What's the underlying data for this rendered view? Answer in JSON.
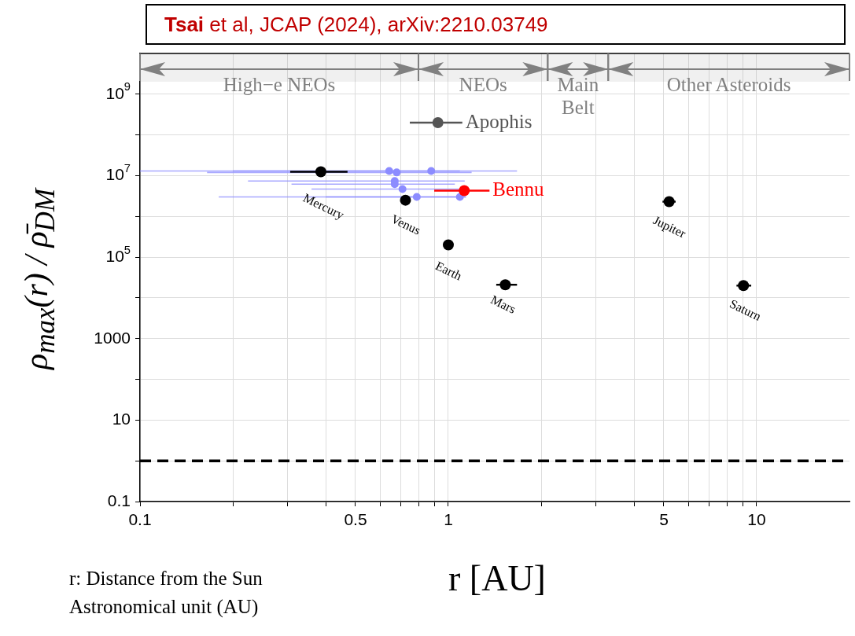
{
  "chart_data": {
    "type": "scatter",
    "title": "Tsai et al, JCAP (2024), arXiv:2210.03749",
    "xlabel": "r [AU]",
    "ylabel": "ρ$_{max}$(r) / ρ̄$_{DM}$",
    "log": "xy",
    "grid": true,
    "marker": "circle",
    "xlim": [
      0.1,
      20
    ],
    "ylim": [
      0.1,
      10000000000
    ],
    "xticks": [
      0.1,
      {
        "value": 0.2,
        "label": null
      },
      {
        "value": 0.3,
        "label": null
      },
      {
        "value": 0.4,
        "label": null
      },
      0.5,
      {
        "value": 0.6,
        "label": null
      },
      {
        "value": 0.7,
        "label": null
      },
      {
        "value": 0.8,
        "label": null
      },
      {
        "value": 0.9,
        "label": null
      },
      1,
      {
        "value": 2,
        "label": null
      },
      {
        "value": 3,
        "label": null
      },
      {
        "value": 4,
        "label": null
      },
      5,
      {
        "value": 6,
        "label": null
      },
      {
        "value": 7,
        "label": null
      },
      {
        "value": 8,
        "label": null
      },
      {
        "value": 9,
        "label": null
      },
      10
    ],
    "yticks": [
      0.1,
      {
        "value": 1,
        "label": null
      },
      10,
      {
        "value": 100,
        "label": null
      },
      1000,
      {
        "value": 10000,
        "label": null
      },
      {
        "value": 100000,
        "label": "10$^{5}$"
      },
      {
        "value": 1000000,
        "label": null
      },
      {
        "value": 10000000,
        "label": "10$^{7}$"
      },
      {
        "value": 100000000,
        "label": null
      },
      {
        "value": 1000000000,
        "label": "10$^{9}$"
      }
    ],
    "series": [
      {
        "name": "Mercury",
        "color": "#000000",
        "x": [
          0.386
        ],
        "values": [
          12500000
        ],
        "xerrors": [
          [
            0.307,
            0.471
          ]
        ]
      },
      {
        "name": "Venus",
        "color": "#000000",
        "x": [
          0.726
        ],
        "values": [
          2500000
        ]
      },
      {
        "name": "Earth",
        "color": "#000000",
        "x": [
          1.0
        ],
        "values": [
          200000
        ]
      },
      {
        "name": "Mars",
        "color": "#000000",
        "x": [
          1.53
        ],
        "values": [
          21000
        ],
        "xerrors": [
          [
            1.43,
            1.67
          ]
        ]
      },
      {
        "name": "Jupiter",
        "color": "#000000",
        "x": [
          5.2
        ],
        "values": [
          2300000
        ],
        "xerrors": [
          [
            4.95,
            5.46
          ]
        ]
      },
      {
        "name": "Saturn",
        "color": "#000000",
        "x": [
          9.06
        ],
        "values": [
          20000
        ],
        "xerrors": [
          [
            8.6,
            9.6
          ]
        ]
      },
      {
        "name": "Apophis",
        "color": "#555555",
        "x": [
          0.925
        ],
        "values": [
          200000000
        ],
        "xerrors": [
          [
            0.75,
            1.11
          ]
        ]
      },
      {
        "name": "Bennu",
        "color": "#ff0000",
        "x": [
          1.126
        ],
        "values": [
          4300000
        ],
        "xerrors": [
          [
            0.9,
            1.36
          ]
        ]
      },
      {
        "color": "#8c8cff",
        "x": [
          0.643,
          0.68,
          0.88,
          0.67,
          0.67,
          0.71,
          0.79,
          1.09
        ],
        "values": [
          13000000,
          12000000,
          13000000,
          7400000,
          6200000,
          4700000,
          3000000,
          3000000
        ],
        "xerrors": [
          [
            0.1,
            1.67
          ],
          [
            0.165,
            1.19
          ],
          [
            0.2,
            1.09
          ],
          [
            0.224,
            1.13
          ],
          [
            0.31,
            1.05
          ],
          [
            0.36,
            1.08
          ],
          [
            0.18,
            1.14
          ],
          [
            0.4,
            1.14
          ]
        ]
      }
    ],
    "ref_lines": [
      {
        "axis": "y",
        "value": 1,
        "color": "#000000",
        "line_style": "dashed"
      }
    ],
    "bands": [
      {
        "axis": "x",
        "from": 0.1,
        "to": 0.8,
        "label": "High−e NEOs",
        "color": "#808080"
      },
      {
        "axis": "x",
        "from": 0.8,
        "to": 2.1,
        "label": "NEOs",
        "color": "#808080"
      },
      {
        "axis": "x",
        "from": 2.1,
        "to": 3.3,
        "label": "Main Belt",
        "color": "#808080"
      },
      {
        "axis": "x",
        "from": 3.3,
        "to": 20,
        "label": "Other Asteroids",
        "color": "#808080"
      }
    ],
    "annotations": [
      "r: Distance from the Sun",
      "Astronomical unit (AU)"
    ]
  }
}
